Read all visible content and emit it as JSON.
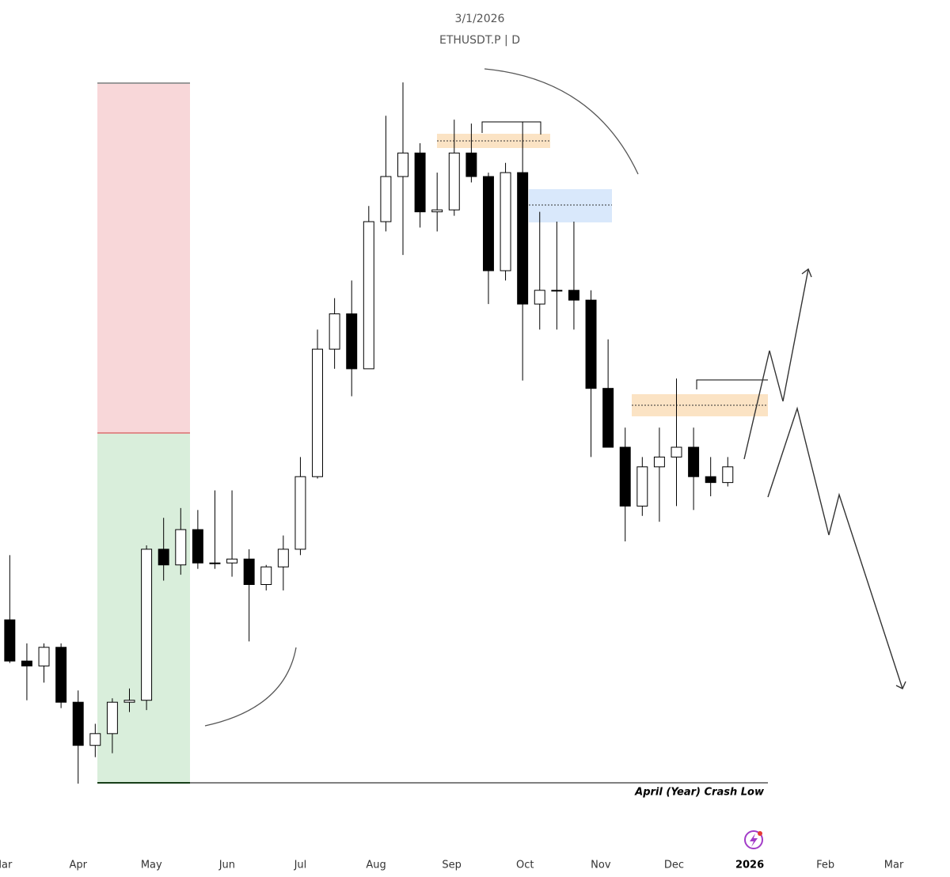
{
  "chart_data": {
    "type": "candlestick",
    "title": "3/1/2026",
    "subtitle": "ETHUSDT.P | D",
    "annotation": "April (Year) Crash Low",
    "x": [
      62,
      69,
      76,
      83,
      90,
      97,
      104,
      111,
      118,
      125,
      132,
      139,
      146,
      153,
      160,
      167,
      174,
      181,
      188,
      195,
      202,
      209,
      216,
      223,
      230,
      237,
      244,
      251,
      258,
      265,
      272,
      279,
      286,
      293,
      300,
      307,
      314,
      321,
      328,
      335,
      342,
      349,
      356
    ],
    "open": [
      2220,
      2010,
      1985,
      2080,
      1800,
      1580,
      1640,
      1800,
      1810,
      2580,
      2500,
      2680,
      2510,
      2510,
      2530,
      2400,
      2490,
      2580,
      2950,
      3600,
      3780,
      3500,
      4250,
      4480,
      4600,
      4300,
      4310,
      4600,
      4480,
      4000,
      4500,
      3830,
      3900,
      3900,
      3850,
      3400,
      3100,
      2800,
      3000,
      3050,
      3100,
      2950,
      2920
    ],
    "high": [
      2550,
      2100,
      2100,
      2100,
      1860,
      1690,
      1820,
      1870,
      2600,
      2740,
      2790,
      2780,
      2880,
      2880,
      2580,
      2500,
      2650,
      3050,
      3700,
      3860,
      3950,
      4330,
      4790,
      4960,
      4650,
      4500,
      4770,
      4750,
      4500,
      4550,
      4760,
      4300,
      4250,
      4250,
      3900,
      3650,
      3200,
      3050,
      3200,
      3450,
      3200,
      3050,
      3050
    ],
    "low": [
      2000,
      1810,
      1900,
      1770,
      1385,
      1520,
      1540,
      1750,
      1760,
      2420,
      2450,
      2480,
      2480,
      2440,
      2110,
      2370,
      2370,
      2550,
      2940,
      3500,
      3360,
      3500,
      4200,
      4080,
      4220,
      4200,
      4280,
      4450,
      3830,
      3950,
      3440,
      3700,
      3700,
      3700,
      3050,
      3100,
      2620,
      2750,
      2720,
      2800,
      2780,
      2850,
      2900
    ],
    "close": [
      2010,
      1985,
      2080,
      1800,
      1580,
      1640,
      1800,
      1810,
      2580,
      2500,
      2680,
      2510,
      2510,
      2530,
      2400,
      2490,
      2580,
      2950,
      3600,
      3780,
      3500,
      4250,
      4480,
      4600,
      4300,
      4310,
      4600,
      4480,
      4000,
      4500,
      3830,
      3900,
      3900,
      3850,
      3400,
      3100,
      2800,
      3000,
      3050,
      3100,
      2950,
      2920,
      3000
    ],
    "up_color": "#ffffff",
    "down_color": "#000000",
    "wick_color": "#000000",
    "xlim": [
      58,
      447
    ],
    "ylim": [
      909,
      5380
    ],
    "xticks": [
      {
        "value": 59,
        "label": "Mar"
      },
      {
        "value": 90,
        "label": "Apr"
      },
      {
        "value": 120,
        "label": "May"
      },
      {
        "value": 151,
        "label": "Jun"
      },
      {
        "value": 181,
        "label": "Jul"
      },
      {
        "value": 212,
        "label": "Aug"
      },
      {
        "value": 243,
        "label": "Sep"
      },
      {
        "value": 273,
        "label": "Oct"
      },
      {
        "value": 304,
        "label": "Nov"
      },
      {
        "value": 334,
        "label": "Dec"
      },
      {
        "value": 365,
        "label": "2026"
      },
      {
        "value": 396,
        "label": "Feb"
      },
      {
        "value": 424,
        "label": "Mar"
      }
    ]
  }
}
